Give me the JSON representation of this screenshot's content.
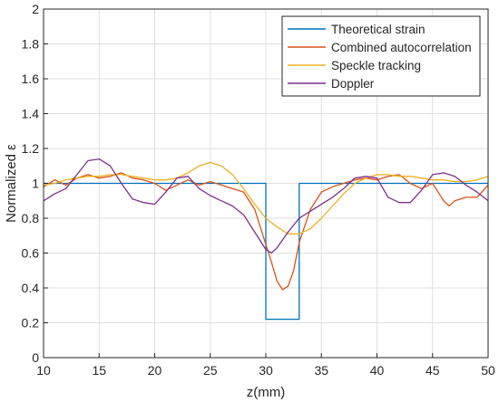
{
  "chart_data": {
    "type": "line",
    "xlabel": "z(mm)",
    "ylabel": "Normalized ε",
    "xlim": [
      10,
      50
    ],
    "ylim": [
      0,
      2
    ],
    "xticks": [
      10,
      15,
      20,
      25,
      30,
      35,
      40,
      45,
      50
    ],
    "yticks": [
      0,
      0.2,
      0.4,
      0.6,
      0.8,
      1,
      1.2,
      1.4,
      1.6,
      1.8,
      2
    ],
    "xtick_labels": [
      "10",
      "15",
      "20",
      "25",
      "30",
      "35",
      "40",
      "45",
      "50"
    ],
    "ytick_labels": [
      "0",
      "0.2",
      "0.4",
      "0.6",
      "0.8",
      "1",
      "1.2",
      "1.4",
      "1.6",
      "1.8",
      "2"
    ],
    "grid": true,
    "legend_position": "top-right",
    "series": [
      {
        "name": "Theoretical strain",
        "color": "#0072BD",
        "points": [
          [
            10,
            1
          ],
          [
            30,
            1
          ],
          [
            30,
            0.22
          ],
          [
            33,
            0.22
          ],
          [
            33,
            1
          ],
          [
            50,
            1
          ]
        ]
      },
      {
        "name": "Combined autocorrelation",
        "color": "#D95319",
        "points": [
          [
            10,
            0.98
          ],
          [
            11,
            1.02
          ],
          [
            12,
            0.99
          ],
          [
            13,
            1.03
          ],
          [
            14,
            1.05
          ],
          [
            15,
            1.03
          ],
          [
            16,
            1.04
          ],
          [
            17,
            1.06
          ],
          [
            18,
            1.03
          ],
          [
            19,
            1.02
          ],
          [
            20,
            1.0
          ],
          [
            21,
            0.96
          ],
          [
            22,
            0.99
          ],
          [
            23,
            1.02
          ],
          [
            24,
            0.99
          ],
          [
            25,
            1.01
          ],
          [
            26,
            0.99
          ],
          [
            27,
            0.97
          ],
          [
            28,
            0.95
          ],
          [
            29,
            0.85
          ],
          [
            30,
            0.65
          ],
          [
            30.5,
            0.55
          ],
          [
            31,
            0.44
          ],
          [
            31.5,
            0.39
          ],
          [
            32,
            0.41
          ],
          [
            32.5,
            0.5
          ],
          [
            33,
            0.66
          ],
          [
            34,
            0.85
          ],
          [
            35,
            0.95
          ],
          [
            36,
            0.98
          ],
          [
            37,
            1.0
          ],
          [
            38,
            1.02
          ],
          [
            39,
            1.03
          ],
          [
            40,
            1.02
          ],
          [
            41,
            1.04
          ],
          [
            42,
            1.05
          ],
          [
            43,
            1.0
          ],
          [
            44,
            0.97
          ],
          [
            45,
            1.0
          ],
          [
            46,
            0.9
          ],
          [
            46.5,
            0.87
          ],
          [
            47,
            0.9
          ],
          [
            48,
            0.92
          ],
          [
            49,
            0.92
          ],
          [
            50,
            0.99
          ]
        ]
      },
      {
        "name": "Speckle tracking",
        "color": "#EDB120",
        "points": [
          [
            10,
            0.99
          ],
          [
            11,
            1.0
          ],
          [
            12,
            1.02
          ],
          [
            13,
            1.03
          ],
          [
            14,
            1.04
          ],
          [
            15,
            1.04
          ],
          [
            16,
            1.05
          ],
          [
            17,
            1.05
          ],
          [
            18,
            1.04
          ],
          [
            19,
            1.03
          ],
          [
            20,
            1.02
          ],
          [
            21,
            1.02
          ],
          [
            22,
            1.03
          ],
          [
            23,
            1.06
          ],
          [
            24,
            1.1
          ],
          [
            25,
            1.12
          ],
          [
            26,
            1.1
          ],
          [
            27,
            1.05
          ],
          [
            28,
            0.97
          ],
          [
            29,
            0.88
          ],
          [
            30,
            0.8
          ],
          [
            31,
            0.75
          ],
          [
            32,
            0.71
          ],
          [
            33,
            0.71
          ],
          [
            34,
            0.74
          ],
          [
            35,
            0.8
          ],
          [
            36,
            0.87
          ],
          [
            37,
            0.94
          ],
          [
            38,
            1.0
          ],
          [
            39,
            1.03
          ],
          [
            40,
            1.05
          ],
          [
            41,
            1.05
          ],
          [
            42,
            1.04
          ],
          [
            43,
            1.04
          ],
          [
            44,
            1.03
          ],
          [
            45,
            1.02
          ],
          [
            46,
            1.02
          ],
          [
            47,
            1.01
          ],
          [
            48,
            1.01
          ],
          [
            49,
            1.02
          ],
          [
            50,
            1.04
          ]
        ]
      },
      {
        "name": "Doppler",
        "color": "#7E2F8E",
        "points": [
          [
            10,
            0.9
          ],
          [
            11,
            0.94
          ],
          [
            12,
            0.97
          ],
          [
            13,
            1.05
          ],
          [
            14,
            1.13
          ],
          [
            15,
            1.14
          ],
          [
            16,
            1.1
          ],
          [
            17,
            1.0
          ],
          [
            18,
            0.91
          ],
          [
            19,
            0.89
          ],
          [
            20,
            0.88
          ],
          [
            21,
            0.95
          ],
          [
            22,
            1.03
          ],
          [
            23,
            1.04
          ],
          [
            24,
            0.97
          ],
          [
            25,
            0.93
          ],
          [
            26,
            0.9
          ],
          [
            27,
            0.87
          ],
          [
            28,
            0.82
          ],
          [
            29,
            0.72
          ],
          [
            30,
            0.62
          ],
          [
            30.5,
            0.6
          ],
          [
            31,
            0.63
          ],
          [
            32,
            0.72
          ],
          [
            33,
            0.8
          ],
          [
            34,
            0.84
          ],
          [
            35,
            0.88
          ],
          [
            36,
            0.92
          ],
          [
            37,
            0.97
          ],
          [
            38,
            1.03
          ],
          [
            39,
            1.04
          ],
          [
            40,
            1.03
          ],
          [
            41,
            0.92
          ],
          [
            42,
            0.89
          ],
          [
            43,
            0.89
          ],
          [
            44,
            0.96
          ],
          [
            45,
            1.05
          ],
          [
            46,
            1.06
          ],
          [
            47,
            1.04
          ],
          [
            48,
            0.99
          ],
          [
            49,
            0.95
          ],
          [
            50,
            0.9
          ]
        ]
      }
    ]
  }
}
